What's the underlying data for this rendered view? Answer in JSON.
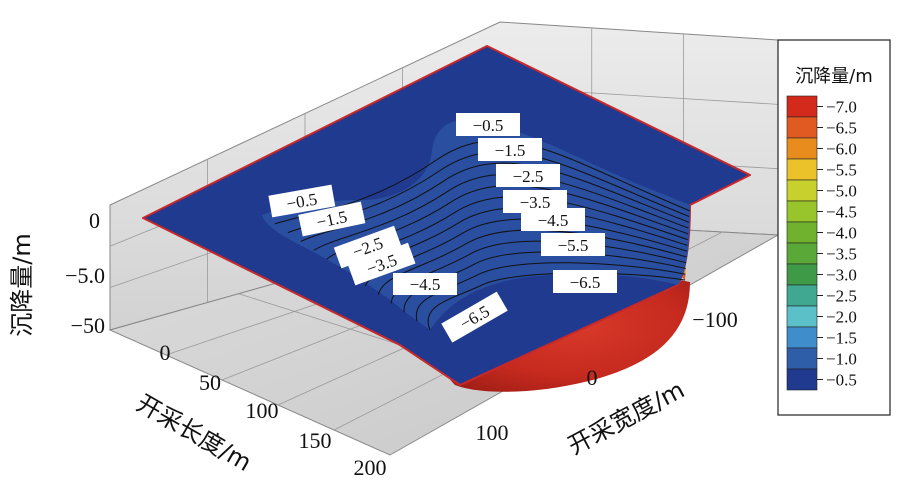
{
  "chart_data": {
    "type": "surface3d",
    "title": "",
    "zlabel": "沉降量/m",
    "xlabel": "开采长度/m",
    "ylabel": "开采宽度/m",
    "z_ticks": [
      "0",
      "−5.0",
      "−50"
    ],
    "x_ticks": [
      "0",
      "50",
      "100",
      "150",
      "200"
    ],
    "y_ticks": [
      "−100",
      "0",
      "100"
    ],
    "contour_labels_left": [
      "−0.5",
      "−1.5",
      "−2.5",
      "−3.5",
      "−4.5",
      "−6.5"
    ],
    "contour_labels_right": [
      "−0.5",
      "−1.5",
      "−2.5",
      "−3.5",
      "−4.5",
      "−5.5",
      "−6.5"
    ],
    "legend": {
      "title": "沉降量/m",
      "placement": "right",
      "levels": [
        "−7.0",
        "−6.5",
        "−6.0",
        "−5.5",
        "−5.0",
        "−4.5",
        "−4.0",
        "−3.5",
        "−3.0",
        "−2.5",
        "−2.0",
        "−1.5",
        "−1.0",
        "−0.5"
      ],
      "colors": [
        "#d42a1c",
        "#e05a22",
        "#e98c1e",
        "#ecc22a",
        "#c8d02e",
        "#98c42c",
        "#70b22e",
        "#5aa838",
        "#3f9a48",
        "#40a890",
        "#5cc0c8",
        "#3f8ecb",
        "#2e5ea8",
        "#1f3a8f"
      ]
    },
    "surface_top_color": "#1f3a8f",
    "surface_edge_color": "#c8282a"
  }
}
